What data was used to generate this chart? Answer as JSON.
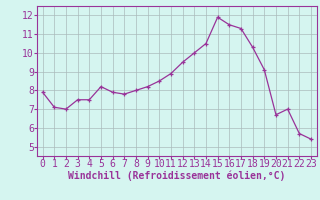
{
  "x": [
    0,
    1,
    2,
    3,
    4,
    5,
    6,
    7,
    8,
    9,
    10,
    11,
    12,
    13,
    14,
    15,
    16,
    17,
    18,
    19,
    20,
    21,
    22,
    23
  ],
  "y": [
    7.9,
    7.1,
    7.0,
    7.5,
    7.5,
    8.2,
    7.9,
    7.8,
    8.0,
    8.2,
    8.5,
    8.9,
    9.5,
    10.0,
    10.5,
    11.9,
    11.5,
    11.3,
    10.3,
    9.1,
    6.7,
    7.0,
    5.7,
    5.4
  ],
  "line_color": "#993399",
  "marker": "+",
  "marker_size": 3,
  "bg_color": "#d5f5f0",
  "grid_color": "#aabbbb",
  "xlabel": "Windchill (Refroidissement éolien,°C)",
  "xlabel_color": "#993399",
  "tick_color": "#993399",
  "label_color": "#993399",
  "spine_color": "#993399",
  "ylim": [
    4.5,
    12.5
  ],
  "xlim": [
    -0.5,
    23.5
  ],
  "yticks": [
    5,
    6,
    7,
    8,
    9,
    10,
    11,
    12
  ],
  "xticks": [
    0,
    1,
    2,
    3,
    4,
    5,
    6,
    7,
    8,
    9,
    10,
    11,
    12,
    13,
    14,
    15,
    16,
    17,
    18,
    19,
    20,
    21,
    22,
    23
  ],
  "tick_fontsize": 7,
  "xlabel_fontsize": 7
}
